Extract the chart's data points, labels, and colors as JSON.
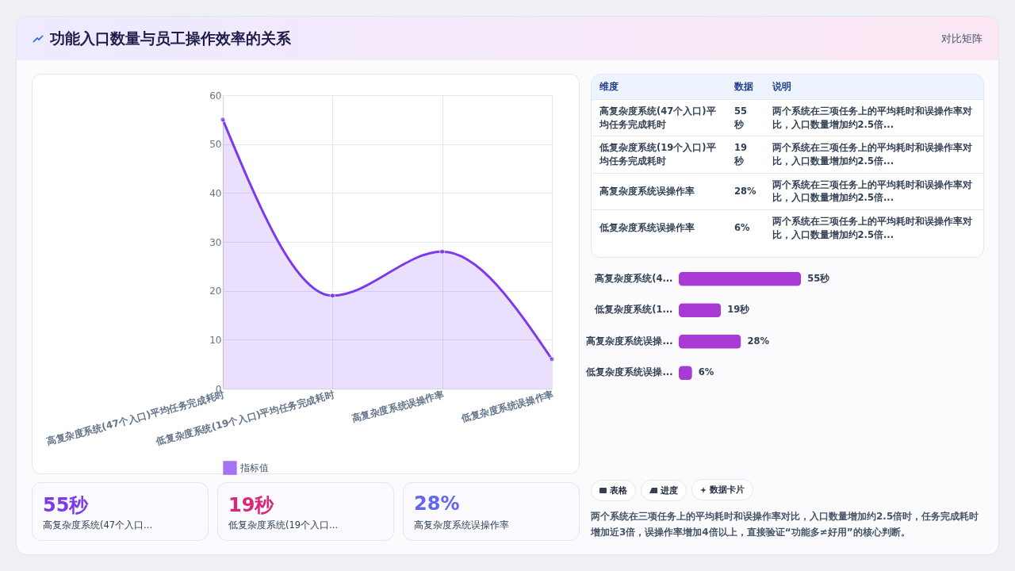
{
  "chart_data": [
    {
      "type": "area",
      "categories": [
        "高复杂度系统(47个入口)平均任务完成耗时",
        "低复杂度系统(19个入口)平均任务完成耗时",
        "高复杂度系统误操作率",
        "低复杂度系统误操作率"
      ],
      "series": [
        {
          "name": "指标值",
          "color": "#7c3aed",
          "values": [
            55,
            19,
            28,
            6
          ]
        }
      ],
      "ylim": [
        0,
        60
      ],
      "yticks": [
        0,
        10,
        20,
        30,
        40,
        50,
        60
      ],
      "grid": true,
      "legend": "bottom",
      "marker": "circle"
    },
    {
      "type": "other",
      "categories": [
        "维度",
        "数据",
        "说明"
      ],
      "y_categories": [
        "高复杂度系统(47个入口)平均任务完成耗时",
        "低复杂度系统(19个入口)平均任务完成耗时",
        "高复杂度系统误操作率",
        "低复杂度系统误操作率"
      ],
      "cell_labels": [
        [
          "55秒",
          "两个系统在三项任务上的平均耗时和误操作率对比，入口数量增加约2.5倍..."
        ],
        [
          "19秒",
          "两个系统在三项任务上的平均耗时和误操作率对比，入口数量增加约2.5倍..."
        ],
        [
          "28%",
          "两个系统在三项任务上的平均耗时和误操作率对比，入口数量增加约2.5倍..."
        ],
        [
          "6%",
          "两个系统在三项任务上的平均耗时和误操作率对比，入口数量增加约2.5倍..."
        ]
      ]
    },
    {
      "type": "bar",
      "orientation": "horizontal",
      "categories": [
        "高复杂度系统(4...",
        "低复杂度系统(1...",
        "高复杂度系统误操...",
        "低复杂度系统误操..."
      ],
      "values": [
        55,
        19,
        28,
        6
      ],
      "value_labels": [
        "55秒",
        "19秒",
        "28%",
        "6%"
      ],
      "color": "#a83bd4"
    },
    {
      "type": "other",
      "categories": [
        "高复杂度系统(47个入口...",
        "低复杂度系统(19个入口...",
        "高复杂度系统误操作率"
      ],
      "value_labels": [
        "55秒",
        "19秒",
        "28%"
      ]
    },
    {
      "type": "other",
      "categories": [
        "表格",
        "进度",
        "数据卡片"
      ],
      "annotations": [
        "两个系统在三项任务上的平均耗时和误操作率对比，入口数量增加约2.5倍时，任务完成耗时增加近3倍，误操作率增加4倍以上，直接验证“功能多≠好用”的核心判断。"
      ]
    },
    {
      "type": "other",
      "title": "功能入口数量与员工操作效率的关系",
      "subtitle": "对比矩阵"
    }
  ]
}
